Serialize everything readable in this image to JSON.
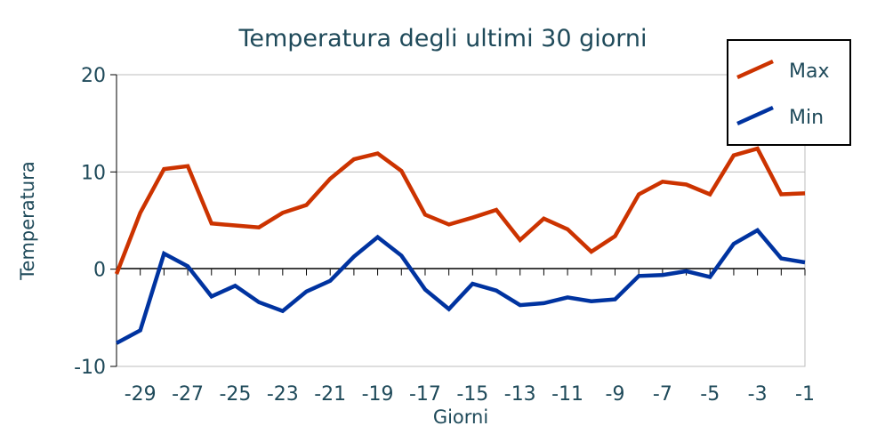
{
  "chart_data": {
    "type": "line",
    "title": "Temperatura degli ultimi 30 giorni",
    "xlabel": "Giorni",
    "ylabel": "Temperatura",
    "ylim": [
      -10,
      20
    ],
    "xlim": [
      -30,
      -1
    ],
    "grid": true,
    "legend_position": "top-right",
    "y_ticks": [
      "20",
      "10",
      "0",
      "-10"
    ],
    "x_ticks": [
      "-29",
      "-27",
      "-25",
      "-23",
      "-21",
      "-19",
      "-17",
      "-15",
      "-13",
      "-11",
      "-9",
      "-7",
      "-5",
      "-3",
      "-1"
    ],
    "x": [
      -30,
      -29,
      -28,
      -27,
      -26,
      -25,
      -24,
      -23,
      -22,
      -21,
      -20,
      -19,
      -18,
      -17,
      -16,
      -15,
      -14,
      -13,
      -12,
      -11,
      -10,
      -9,
      -8,
      -7,
      -6,
      -5,
      -4,
      -3,
      -2,
      -1
    ],
    "series": [
      {
        "name": "Max",
        "color": "#cc3300",
        "values": [
          -0.5,
          5.8,
          10.3,
          10.6,
          4.7,
          4.5,
          4.3,
          5.8,
          6.6,
          9.3,
          11.3,
          11.9,
          10.1,
          5.6,
          4.6,
          5.3,
          6.1,
          3.0,
          5.2,
          4.1,
          1.8,
          3.4,
          7.7,
          9.0,
          8.7,
          7.7,
          11.7,
          12.4,
          7.7,
          7.8
        ]
      },
      {
        "name": "Min",
        "color": "#0033a0",
        "values": [
          -7.6,
          -6.3,
          1.6,
          0.3,
          -2.8,
          -1.7,
          -3.4,
          -4.3,
          -2.3,
          -1.2,
          1.3,
          3.3,
          1.4,
          -2.1,
          -4.1,
          -1.5,
          -2.2,
          -3.7,
          -3.5,
          -2.9,
          -3.3,
          -3.1,
          -0.7,
          -0.6,
          -0.2,
          -0.8,
          2.6,
          4.0,
          1.1,
          0.7
        ]
      }
    ]
  }
}
